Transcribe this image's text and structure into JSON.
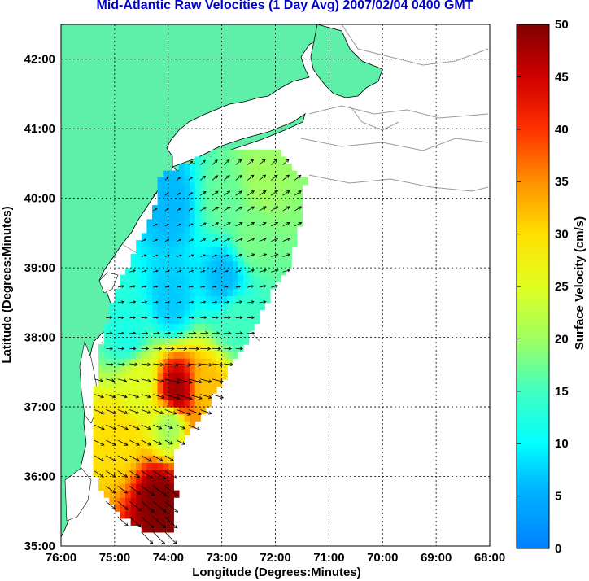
{
  "title": "Mid-Atlantic Raw Velocities (1 Day Avg) 2007/02/04 0400 GMT",
  "xlabel": "Longitude (Degrees:Minutes)",
  "ylabel": "Latitude (Degrees:Minutes)",
  "x_ticks": [
    "76:00",
    "75:00",
    "74:00",
    "73:00",
    "72:00",
    "71:00",
    "70:00",
    "69:00",
    "68:00"
  ],
  "y_ticks": [
    "42:00",
    "41:00",
    "40:00",
    "39:00",
    "38:00",
    "37:00",
    "36:00",
    "35:00"
  ],
  "colorbar": {
    "label": "Surface Velocity (cm/s)",
    "ticks": [
      "50",
      "45",
      "40",
      "35",
      "30",
      "25",
      "20",
      "15",
      "10",
      "5",
      "0"
    ],
    "range": [
      0,
      50
    ]
  },
  "colors": {
    "land": "#5ef0a8",
    "title": "#0000cc",
    "grid": "#000000",
    "coast_outline": "#999999"
  },
  "chart_data": {
    "type": "heatmap",
    "title": "Mid-Atlantic Raw Velocities (1 Day Avg) 2007/02/04 0400 GMT",
    "xlabel": "Longitude (Degrees:Minutes)",
    "ylabel": "Latitude (Degrees:Minutes)",
    "xlim": [
      -76,
      -68
    ],
    "ylim": [
      35,
      42.5
    ],
    "value_range": [
      0,
      50
    ],
    "value_label": "Surface Velocity (cm/s)",
    "grid": true,
    "legend_position": "right",
    "regions": [
      {
        "lon": -74.0,
        "lat": 39.85,
        "speed": 6
      },
      {
        "lon": -73.0,
        "lat": 39.9,
        "speed": 17
      },
      {
        "lon": -72.3,
        "lat": 40.2,
        "speed": 20
      },
      {
        "lon": -72.5,
        "lat": 39.4,
        "speed": 18
      },
      {
        "lon": -74.0,
        "lat": 38.5,
        "speed": 7
      },
      {
        "lon": -73.0,
        "lat": 38.8,
        "speed": 6
      },
      {
        "lon": -72.8,
        "lat": 38.2,
        "speed": 15
      },
      {
        "lon": -74.8,
        "lat": 38.0,
        "speed": 12
      },
      {
        "lon": -73.3,
        "lat": 37.2,
        "speed": 32
      },
      {
        "lon": -73.9,
        "lat": 37.15,
        "speed": 48
      },
      {
        "lon": -74.6,
        "lat": 37.3,
        "speed": 25
      },
      {
        "lon": -75.0,
        "lat": 36.5,
        "speed": 30
      },
      {
        "lon": -74.0,
        "lat": 36.7,
        "speed": 20
      },
      {
        "lon": -74.2,
        "lat": 35.6,
        "speed": 50
      },
      {
        "lon": -73.5,
        "lat": 36.3,
        "speed": 38
      }
    ]
  }
}
